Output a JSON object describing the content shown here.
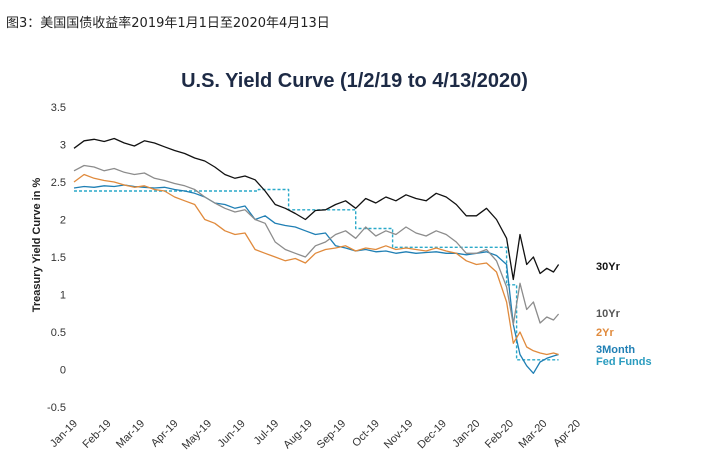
{
  "caption": "图3：美国国债收益率2019年1月1日至2020年4月13日",
  "chart_data": {
    "type": "line",
    "title": "U.S. Yield Curve (1/2/19 to 4/13/2020)",
    "ylabel": "Treasury Yield Curve in %",
    "xlabel": "",
    "ylim": [
      -0.5,
      3.5
    ],
    "yticks": [
      "3.5",
      "3",
      "2.5",
      "2",
      "1.5",
      "1",
      "0.5",
      "0",
      "-0.5"
    ],
    "xticks": [
      "Jan-19",
      "Feb-19",
      "Mar-19",
      "Apr-19",
      "May-19",
      "Jun-19",
      "Jul-19",
      "Aug-19",
      "Sep-19",
      "Oct-19",
      "Nov-19",
      "Dec-19",
      "Jan-20",
      "Feb-20",
      "Mar-20",
      "Apr-20"
    ],
    "grid": false,
    "legend": "right-end labels",
    "series": [
      {
        "name": "30Yr",
        "color": "#111111",
        "x": [
          0,
          0.3,
          0.6,
          0.9,
          1.2,
          1.5,
          1.8,
          2.1,
          2.4,
          2.7,
          3.0,
          3.3,
          3.6,
          3.9,
          4.2,
          4.5,
          4.8,
          5.1,
          5.4,
          5.7,
          6.0,
          6.3,
          6.6,
          6.9,
          7.2,
          7.5,
          7.8,
          8.1,
          8.4,
          8.7,
          9.0,
          9.3,
          9.6,
          9.9,
          10.2,
          10.5,
          10.8,
          11.1,
          11.4,
          11.7,
          12.0,
          12.3,
          12.6,
          12.9,
          13.1,
          13.3,
          13.5,
          13.7,
          13.9,
          14.1,
          14.3,
          14.45
        ],
        "values": [
          2.95,
          3.05,
          3.07,
          3.04,
          3.08,
          3.02,
          2.98,
          3.05,
          3.02,
          2.97,
          2.92,
          2.88,
          2.82,
          2.78,
          2.7,
          2.6,
          2.55,
          2.58,
          2.53,
          2.38,
          2.2,
          2.15,
          2.08,
          2.0,
          2.12,
          2.13,
          2.2,
          2.25,
          2.15,
          2.28,
          2.22,
          2.3,
          2.25,
          2.33,
          2.28,
          2.25,
          2.35,
          2.3,
          2.2,
          2.05,
          2.05,
          2.15,
          2.0,
          1.75,
          1.2,
          1.8,
          1.4,
          1.5,
          1.28,
          1.35,
          1.3,
          1.4
        ]
      },
      {
        "name": "10Yr",
        "color": "#8c8c8c",
        "x": [
          0,
          0.3,
          0.6,
          0.9,
          1.2,
          1.5,
          1.8,
          2.1,
          2.4,
          2.7,
          3.0,
          3.3,
          3.6,
          3.9,
          4.2,
          4.5,
          4.8,
          5.1,
          5.4,
          5.7,
          6.0,
          6.3,
          6.6,
          6.9,
          7.2,
          7.5,
          7.8,
          8.1,
          8.4,
          8.7,
          9.0,
          9.3,
          9.6,
          9.9,
          10.2,
          10.5,
          10.8,
          11.1,
          11.4,
          11.7,
          12.0,
          12.3,
          12.6,
          12.9,
          13.1,
          13.3,
          13.5,
          13.7,
          13.9,
          14.1,
          14.3,
          14.45
        ],
        "values": [
          2.65,
          2.72,
          2.7,
          2.65,
          2.68,
          2.63,
          2.6,
          2.62,
          2.55,
          2.52,
          2.48,
          2.45,
          2.4,
          2.3,
          2.22,
          2.15,
          2.1,
          2.13,
          2.0,
          1.95,
          1.7,
          1.6,
          1.55,
          1.5,
          1.65,
          1.7,
          1.8,
          1.85,
          1.75,
          1.9,
          1.78,
          1.85,
          1.8,
          1.9,
          1.82,
          1.78,
          1.85,
          1.8,
          1.7,
          1.55,
          1.55,
          1.6,
          1.45,
          1.1,
          0.6,
          1.15,
          0.8,
          0.9,
          0.62,
          0.7,
          0.66,
          0.74
        ]
      },
      {
        "name": "2Yr",
        "color": "#e08a3c",
        "x": [
          0,
          0.3,
          0.6,
          0.9,
          1.2,
          1.5,
          1.8,
          2.1,
          2.4,
          2.7,
          3.0,
          3.3,
          3.6,
          3.9,
          4.2,
          4.5,
          4.8,
          5.1,
          5.4,
          5.7,
          6.0,
          6.3,
          6.6,
          6.9,
          7.2,
          7.5,
          7.8,
          8.1,
          8.4,
          8.7,
          9.0,
          9.3,
          9.6,
          9.9,
          10.2,
          10.5,
          10.8,
          11.1,
          11.4,
          11.7,
          12.0,
          12.3,
          12.6,
          12.9,
          13.1,
          13.3,
          13.5,
          13.7,
          13.9,
          14.1,
          14.3,
          14.45
        ],
        "values": [
          2.5,
          2.6,
          2.55,
          2.52,
          2.5,
          2.46,
          2.43,
          2.45,
          2.4,
          2.38,
          2.3,
          2.25,
          2.2,
          2.0,
          1.95,
          1.85,
          1.8,
          1.82,
          1.6,
          1.55,
          1.5,
          1.45,
          1.48,
          1.42,
          1.55,
          1.6,
          1.62,
          1.65,
          1.58,
          1.62,
          1.6,
          1.65,
          1.6,
          1.62,
          1.6,
          1.58,
          1.62,
          1.58,
          1.55,
          1.45,
          1.4,
          1.42,
          1.3,
          0.9,
          0.35,
          0.5,
          0.3,
          0.25,
          0.22,
          0.2,
          0.22,
          0.2
        ]
      },
      {
        "name": "3Month",
        "color": "#1f7fb4",
        "x": [
          0,
          0.3,
          0.6,
          0.9,
          1.2,
          1.5,
          1.8,
          2.1,
          2.4,
          2.7,
          3.0,
          3.3,
          3.6,
          3.9,
          4.2,
          4.5,
          4.8,
          5.1,
          5.4,
          5.7,
          6.0,
          6.3,
          6.6,
          6.9,
          7.2,
          7.5,
          7.8,
          8.1,
          8.4,
          8.7,
          9.0,
          9.3,
          9.6,
          9.9,
          10.2,
          10.5,
          10.8,
          11.1,
          11.4,
          11.7,
          12.0,
          12.3,
          12.6,
          12.9,
          13.1,
          13.3,
          13.5,
          13.7,
          13.9,
          14.1,
          14.3,
          14.45
        ],
        "values": [
          2.42,
          2.44,
          2.43,
          2.45,
          2.44,
          2.46,
          2.44,
          2.43,
          2.42,
          2.43,
          2.4,
          2.38,
          2.35,
          2.3,
          2.22,
          2.2,
          2.15,
          2.18,
          2.0,
          2.05,
          1.95,
          1.92,
          1.9,
          1.85,
          1.8,
          1.82,
          1.65,
          1.62,
          1.58,
          1.6,
          1.57,
          1.58,
          1.55,
          1.57,
          1.55,
          1.56,
          1.57,
          1.55,
          1.55,
          1.53,
          1.55,
          1.57,
          1.52,
          1.4,
          0.6,
          0.2,
          0.05,
          -0.05,
          0.1,
          0.15,
          0.18,
          0.2
        ]
      },
      {
        "name": "Fed Funds",
        "color": "#2aa9c9",
        "dashed": true,
        "x": [
          0,
          4.5,
          4.5,
          5.5,
          5.5,
          6.4,
          6.4,
          7.2,
          7.2,
          8.4,
          8.4,
          9.5,
          9.5,
          12.9,
          12.9,
          13.2,
          13.2,
          14.45
        ],
        "values": [
          2.38,
          2.38,
          2.38,
          2.38,
          2.4,
          2.4,
          2.13,
          2.13,
          2.13,
          2.13,
          1.88,
          1.88,
          1.63,
          1.63,
          1.13,
          1.13,
          0.13,
          0.13
        ]
      }
    ]
  }
}
